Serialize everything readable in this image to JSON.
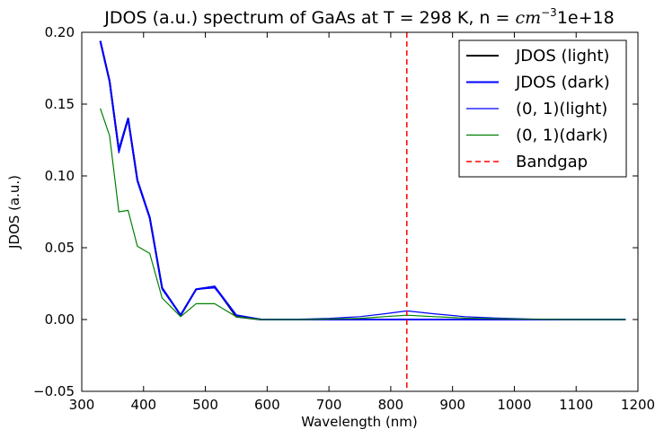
{
  "chart_data": {
    "type": "line",
    "title": "JDOS (a.u.) spectrum of GaAs at T = 298 K, n = ",
    "title_math": "cm",
    "title_math_sup": "−3",
    "title_suffix": "1e+18",
    "xlabel": "Wavelength (nm)",
    "ylabel": "JDOS (a.u.)",
    "xlim": [
      300,
      1200
    ],
    "ylim": [
      -0.05,
      0.2
    ],
    "x_ticks": [
      300,
      400,
      500,
      600,
      700,
      800,
      900,
      1000,
      1100,
      1200
    ],
    "x_tick_labels": [
      "300",
      "400",
      "500",
      "600",
      "700",
      "800",
      "900",
      "1000",
      "1100",
      "1200"
    ],
    "y_ticks": [
      -0.05,
      0.0,
      0.05,
      0.1,
      0.15,
      0.2
    ],
    "y_tick_labels": [
      "−0.05",
      "0.00",
      "0.05",
      "0.10",
      "0.15",
      "0.20"
    ],
    "grid": false,
    "legend_position": "top-right",
    "x": [
      330,
      345,
      360,
      375,
      390,
      410,
      430,
      460,
      485,
      515,
      550,
      590,
      620,
      660,
      700,
      750,
      790,
      826,
      870,
      920,
      970,
      1030,
      1100,
      1180
    ],
    "series": [
      {
        "name": "JDOS (light)",
        "color": "#000000",
        "width": 2,
        "dash": "",
        "values": [
          0.194,
          0.166,
          0.118,
          0.14,
          0.097,
          0.071,
          0.022,
          0.003,
          0.021,
          0.023,
          0.002,
          0.0,
          0.0,
          0.0,
          0.0,
          0.0,
          0.0,
          0.0,
          0.0,
          0.0,
          0.0,
          0.0,
          0.0,
          0.0
        ]
      },
      {
        "name": "JDOS (dark)",
        "color": "#0000ff",
        "width": 2,
        "dash": "",
        "values": [
          0.194,
          0.166,
          0.118,
          0.14,
          0.097,
          0.071,
          0.022,
          0.003,
          0.021,
          0.023,
          0.003,
          0.0,
          0.0,
          0.0,
          0.0,
          0.0,
          0.0,
          0.0,
          0.0,
          0.0,
          0.0,
          0.0,
          0.0,
          0.0
        ]
      },
      {
        "name": "(0, 1)(light)",
        "color": "#0000ff",
        "width": 1.2,
        "dash": "",
        "values": [
          0.193,
          0.165,
          0.116,
          0.139,
          0.096,
          0.07,
          0.021,
          0.003,
          0.021,
          0.022,
          0.003,
          0.0,
          0.0,
          0.0003,
          0.0008,
          0.002,
          0.004,
          0.006,
          0.004,
          0.002,
          0.001,
          0.0003,
          0.0,
          0.0
        ]
      },
      {
        "name": "(0, 1)(dark)",
        "color": "#008000",
        "width": 1.2,
        "dash": "",
        "values": [
          0.147,
          0.128,
          0.075,
          0.076,
          0.051,
          0.046,
          0.015,
          0.002,
          0.011,
          0.011,
          0.002,
          0.0,
          0.0,
          0.0,
          0.0003,
          0.0008,
          0.002,
          0.003,
          0.002,
          0.001,
          0.0005,
          0.0002,
          0.0,
          0.0
        ]
      }
    ],
    "vlines": [
      {
        "name": "Bandgap",
        "x": 826,
        "color": "#ff0000",
        "dash": "6,4",
        "width": 1.5
      }
    ]
  }
}
